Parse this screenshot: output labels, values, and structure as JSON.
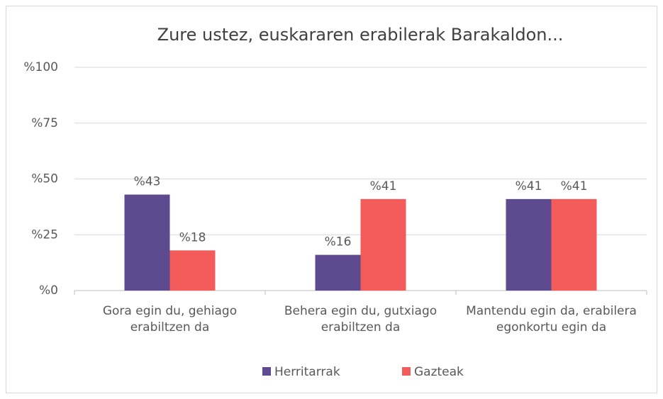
{
  "chart_data": {
    "type": "bar",
    "title": "Zure ustez, euskararen erabilerak Barakaldon...",
    "categories": [
      "Gora egin du, gehiago erabiltzen da",
      "Behera egin du, gutxiago erabiltzen da",
      "Mantendu egin da, erabilera egonkortu egin da"
    ],
    "series": [
      {
        "name": "Herritarrak",
        "color": "#5e4a8f",
        "values": [
          43,
          16,
          41
        ],
        "value_labels": [
          "%43",
          "%16",
          "%41"
        ]
      },
      {
        "name": "Gazteak",
        "color": "#f45b5b",
        "values": [
          18,
          41,
          41
        ],
        "value_labels": [
          "%18",
          "%41",
          "%41"
        ]
      }
    ],
    "ylim": [
      0,
      100
    ],
    "yticks": [
      {
        "value": 0,
        "label": "%0"
      },
      {
        "value": 25,
        "label": "%25"
      },
      {
        "value": 50,
        "label": "%50"
      },
      {
        "value": 75,
        "label": "%75"
      },
      {
        "value": 100,
        "label": "%100"
      }
    ],
    "grid": true,
    "legend": "bottom"
  }
}
